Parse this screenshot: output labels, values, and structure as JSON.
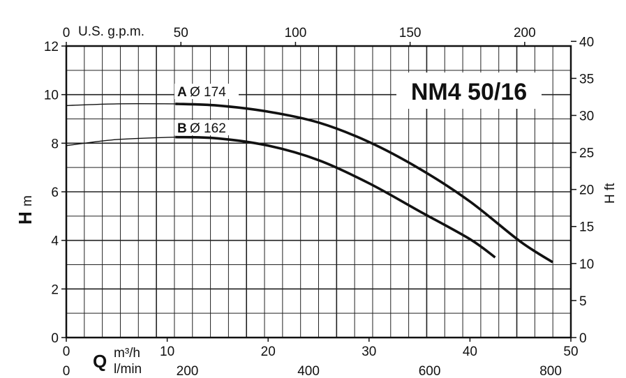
{
  "chart_data": {
    "type": "line",
    "title": "NM4 50/16",
    "x": {
      "label": "Q",
      "unit": "m³/h",
      "range": [
        0,
        50
      ],
      "ticks": [
        "0",
        "10",
        "20",
        "30",
        "40",
        "50"
      ]
    },
    "x_top": {
      "label": "U.S. g.p.m.",
      "ticks": [
        "0",
        "50",
        "100",
        "150",
        "200"
      ]
    },
    "x_bottom2": {
      "unit": "l/min",
      "ticks": [
        "0",
        "200",
        "400",
        "600",
        "800"
      ]
    },
    "y": {
      "label": "H",
      "unit": "m",
      "range": [
        0,
        12
      ],
      "ticks": [
        "0",
        "2",
        "4",
        "6",
        "8",
        "10",
        "12"
      ]
    },
    "y_right": {
      "label": "H ft",
      "ticks": [
        "0",
        "5",
        "10",
        "15",
        "20",
        "25",
        "30",
        "35",
        "40"
      ]
    },
    "grid": true,
    "series": [
      {
        "name": "A",
        "impeller": "Ø 174",
        "points": [
          [
            0,
            9.55
          ],
          [
            5,
            9.62
          ],
          [
            10.8,
            9.62
          ],
          [
            15,
            9.55
          ],
          [
            20,
            9.3
          ],
          [
            25,
            8.85
          ],
          [
            30,
            8.05
          ],
          [
            35,
            6.95
          ],
          [
            40,
            5.6
          ],
          [
            45,
            3.95
          ],
          [
            48.2,
            3.1
          ]
        ]
      },
      {
        "name": "B",
        "impeller": "Ø 162",
        "points": [
          [
            0,
            7.9
          ],
          [
            5,
            8.15
          ],
          [
            10.8,
            8.25
          ],
          [
            15,
            8.2
          ],
          [
            20,
            7.9
          ],
          [
            25,
            7.3
          ],
          [
            30,
            6.35
          ],
          [
            35,
            5.2
          ],
          [
            40,
            4.05
          ],
          [
            42.5,
            3.3
          ]
        ]
      }
    ]
  }
}
